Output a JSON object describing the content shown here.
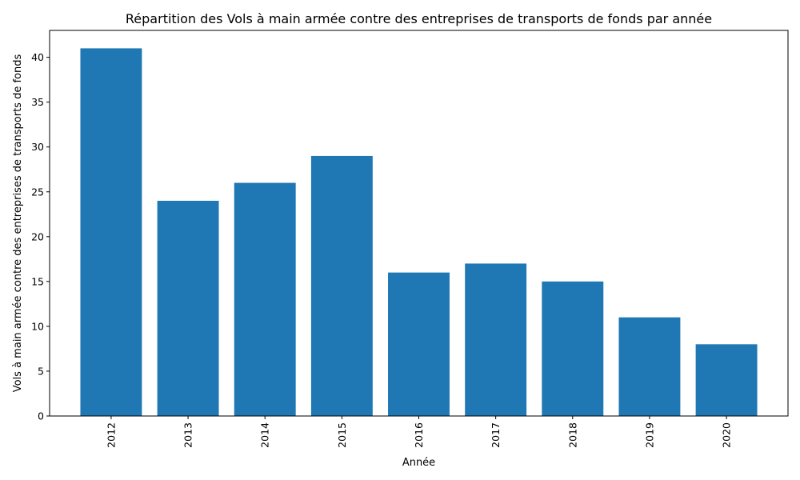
{
  "chart_data": {
    "type": "bar",
    "title": "Répartition des Vols à main armée contre des entreprises de transports de fonds par année",
    "xlabel": "Année",
    "ylabel": "Vols à main armée contre des entreprises de transports de fonds",
    "categories": [
      "2012",
      "2013",
      "2014",
      "2015",
      "2016",
      "2017",
      "2018",
      "2019",
      "2020"
    ],
    "values": [
      41,
      24,
      26,
      29,
      16,
      17,
      15,
      11,
      8
    ],
    "ylim": [
      0,
      43
    ],
    "yticks": [
      0,
      5,
      10,
      15,
      20,
      25,
      30,
      35,
      40
    ],
    "grid": false,
    "legend": "none",
    "x_tick_rotation": "vertical",
    "bar_color": "#1f77b4"
  }
}
